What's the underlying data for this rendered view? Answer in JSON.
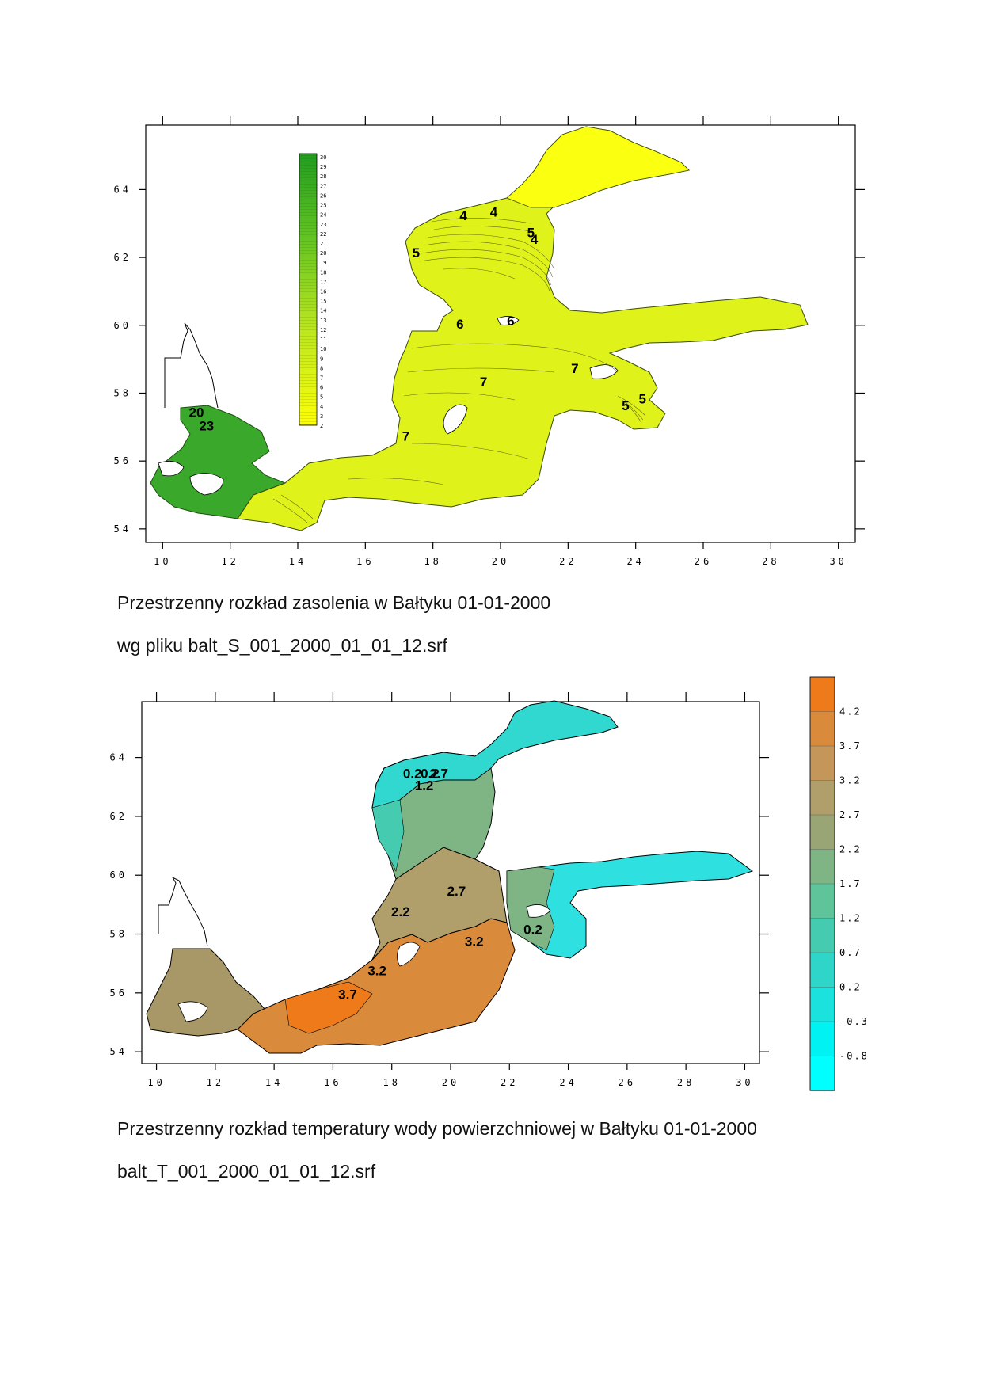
{
  "maps": [
    {
      "id": "salinity",
      "caption_line1": "Przestrzenny rozkład zasolenia w Bałtyku 01-01-2000",
      "caption_line2": "wg pliku balt_S_001_2000_01_01_12.srf",
      "x_ticks": [
        "10",
        "12",
        "14",
        "16",
        "18",
        "20",
        "22",
        "24",
        "26",
        "28",
        "30"
      ],
      "y_ticks": [
        "64",
        "62",
        "60",
        "58",
        "56",
        "54"
      ],
      "lon_range": [
        9.5,
        30.5
      ],
      "lat_range": [
        53.6,
        65.9
      ],
      "legend_values": [
        "30",
        "29",
        "28",
        "27",
        "26",
        "25",
        "24",
        "23",
        "22",
        "21",
        "20",
        "19",
        "18",
        "17",
        "16",
        "15",
        "14",
        "13",
        "12",
        "11",
        "10",
        "9",
        "8",
        "7",
        "6",
        "5",
        "4",
        "3",
        "2"
      ],
      "legend_colors": {
        "low": "#ffff00",
        "high": "#1e9e1e"
      },
      "contour_labels": [
        {
          "text": "4",
          "lon": 18.9,
          "lat": 63.1
        },
        {
          "text": "4",
          "lon": 19.8,
          "lat": 63.2
        },
        {
          "text": "5",
          "lon": 20.9,
          "lat": 62.6
        },
        {
          "text": "4",
          "lon": 21.0,
          "lat": 62.4
        },
        {
          "text": "5",
          "lon": 17.5,
          "lat": 62.0
        },
        {
          "text": "6",
          "lon": 18.8,
          "lat": 59.9
        },
        {
          "text": "6",
          "lon": 20.3,
          "lat": 60.0
        },
        {
          "text": "7",
          "lon": 22.2,
          "lat": 58.6
        },
        {
          "text": "7",
          "lon": 19.5,
          "lat": 58.2
        },
        {
          "text": "5",
          "lon": 23.7,
          "lat": 57.5
        },
        {
          "text": "5",
          "lon": 24.2,
          "lat": 57.7
        },
        {
          "text": "7",
          "lon": 17.2,
          "lat": 56.6
        },
        {
          "text": "20",
          "lon": 11.0,
          "lat": 57.3
        },
        {
          "text": "23",
          "lon": 11.3,
          "lat": 56.9
        }
      ]
    },
    {
      "id": "temperature",
      "caption_line1": "Przestrzenny rozkład temperatury wody powierzchniowej w Bałtyku 01-01-2000",
      "caption_line2": "balt_T_001_2000_01_01_12.srf",
      "x_ticks": [
        "10",
        "12",
        "14",
        "16",
        "18",
        "20",
        "22",
        "24",
        "26",
        "28",
        "30"
      ],
      "y_ticks": [
        "64",
        "62",
        "60",
        "58",
        "56",
        "54"
      ],
      "lon_range": [
        9.5,
        30.5
      ],
      "lat_range": [
        53.6,
        65.9
      ],
      "legend_values": [
        "4.2",
        "3.7",
        "3.2",
        "2.7",
        "2.2",
        "1.7",
        "1.2",
        "0.7",
        "0.2",
        "-0.3",
        "-0.8"
      ],
      "legend_colors": [
        "#ef7a1a",
        "#d98a3a",
        "#c4965a",
        "#b09f6a",
        "#9aa575",
        "#7fb585",
        "#5fc49a",
        "#45ccb0",
        "#2ed5c8",
        "#1ce2de",
        "#00f2f2",
        "#00ffff"
      ],
      "contour_labels": [
        {
          "text": "0.2",
          "lon": 18.7,
          "lat": 63.3
        },
        {
          "text": "0.2",
          "lon": 19.3,
          "lat": 63.3
        },
        {
          "text": "2.7",
          "lon": 19.6,
          "lat": 63.3
        },
        {
          "text": "1.2",
          "lon": 19.1,
          "lat": 62.9
        },
        {
          "text": "2.7",
          "lon": 20.2,
          "lat": 59.3
        },
        {
          "text": "2.2",
          "lon": 18.3,
          "lat": 58.6
        },
        {
          "text": "0.2",
          "lon": 22.8,
          "lat": 58.0
        },
        {
          "text": "3.2",
          "lon": 20.8,
          "lat": 57.6
        },
        {
          "text": "3.2",
          "lon": 17.5,
          "lat": 56.6
        },
        {
          "text": "3.7",
          "lon": 16.5,
          "lat": 55.8
        }
      ]
    }
  ]
}
